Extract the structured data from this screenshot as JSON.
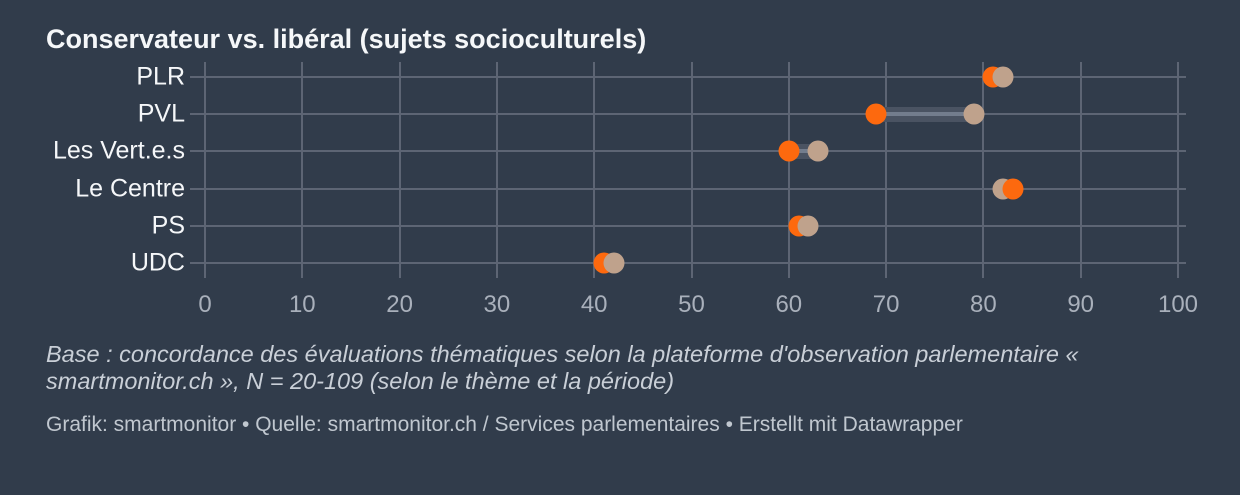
{
  "title": "Conservateur vs. libéral (sujets socioculturels)",
  "footnote": "Base : concordance des évaluations thématiques selon la plateforme d'observation parlementaire « smartmonitor.ch », N = 20-109 (selon le thème et la période)",
  "credit": "Grafik: smartmonitor • Quelle: smartmonitor.ch / Services parlementaires • Erstellt mit Datawrapper",
  "colors": {
    "background": "#313c4b",
    "grid": "#5d6574",
    "axis_text": "#a9b0bb",
    "label_text": "#f5f7f9",
    "footnote_text": "#c9cfd7",
    "credit_text": "#c0c7cf",
    "orange": "#fd690e",
    "beige": "#bfa28c",
    "connector": "#4a5362",
    "connector_core": "#737d8d"
  },
  "chart_data": {
    "type": "scatter",
    "variant": "dumbbell-range",
    "title": "Conservateur vs. libéral (sujets socioculturels)",
    "categories": [
      "PLR",
      "PVL",
      "Les Vert.e.s",
      "Le Centre",
      "PS",
      "UDC"
    ],
    "series": [
      {
        "name": "orange",
        "color": "#fd690e",
        "values": [
          81,
          69,
          60,
          83,
          61,
          41
        ]
      },
      {
        "name": "beige",
        "color": "#bfa28c",
        "values": [
          82,
          79,
          63,
          82,
          62,
          42
        ]
      }
    ],
    "top_dot_per_category": [
      "beige",
      "beige",
      "beige",
      "orange",
      "beige",
      "beige"
    ],
    "xlim": [
      0,
      100
    ],
    "xticks": [
      0,
      10,
      20,
      30,
      40,
      50,
      60,
      70,
      80,
      90,
      100
    ],
    "grid": true,
    "legend": "none"
  }
}
